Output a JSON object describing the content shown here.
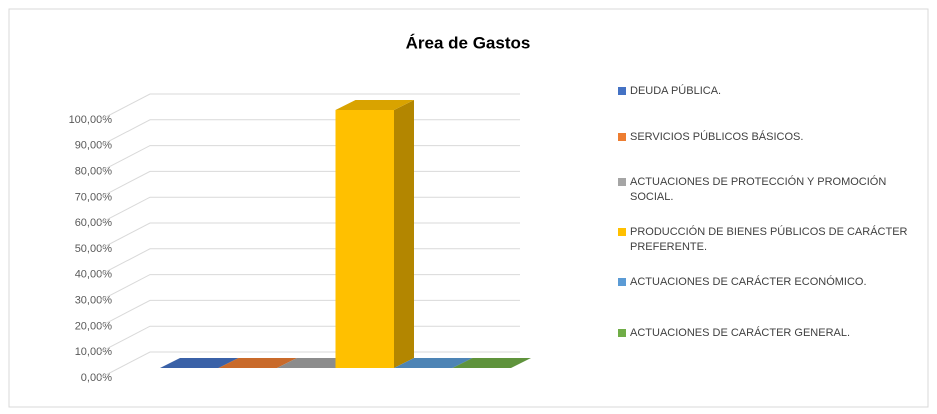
{
  "chart_data": {
    "type": "bar3d",
    "title": "Área de Gastos",
    "categories": [
      null
    ],
    "series": [
      {
        "name": "DEUDA PÚBLICA.",
        "color": "#4472c4",
        "values": [
          0
        ]
      },
      {
        "name": "SERVICIOS PÚBLICOS BÁSICOS.",
        "color": "#ed7d31",
        "values": [
          0
        ]
      },
      {
        "name": "ACTUACIONES DE PROTECCIÓN Y PROMOCIÓN SOCIAL.",
        "color": "#a5a5a5",
        "values": [
          0
        ]
      },
      {
        "name": "PRODUCCIÓN DE BIENES PÚBLICOS DE CARÁCTER PREFERENTE.",
        "color": "#ffc000",
        "values": [
          100
        ]
      },
      {
        "name": "ACTUACIONES DE CARÁCTER ECONÓMICO.",
        "color": "#5b9bd5",
        "values": [
          0
        ]
      },
      {
        "name": "ACTUACIONES DE CARÁCTER GENERAL.",
        "color": "#70ad47",
        "values": [
          0
        ]
      }
    ],
    "ylim": [
      0,
      100
    ],
    "yticks": [
      {
        "value": 0,
        "label": "0,00%"
      },
      {
        "value": 10,
        "label": "10,00%"
      },
      {
        "value": 20,
        "label": "20,00%"
      },
      {
        "value": 30,
        "label": "30,00%"
      },
      {
        "value": 40,
        "label": "40,00%"
      },
      {
        "value": 50,
        "label": "50,00%"
      },
      {
        "value": 60,
        "label": "60,00%"
      },
      {
        "value": 70,
        "label": "70,00%"
      },
      {
        "value": 80,
        "label": "80,00%"
      },
      {
        "value": 90,
        "label": "90,00%"
      },
      {
        "value": 100,
        "label": "100,00%"
      }
    ],
    "grid": true,
    "legend": "right"
  }
}
